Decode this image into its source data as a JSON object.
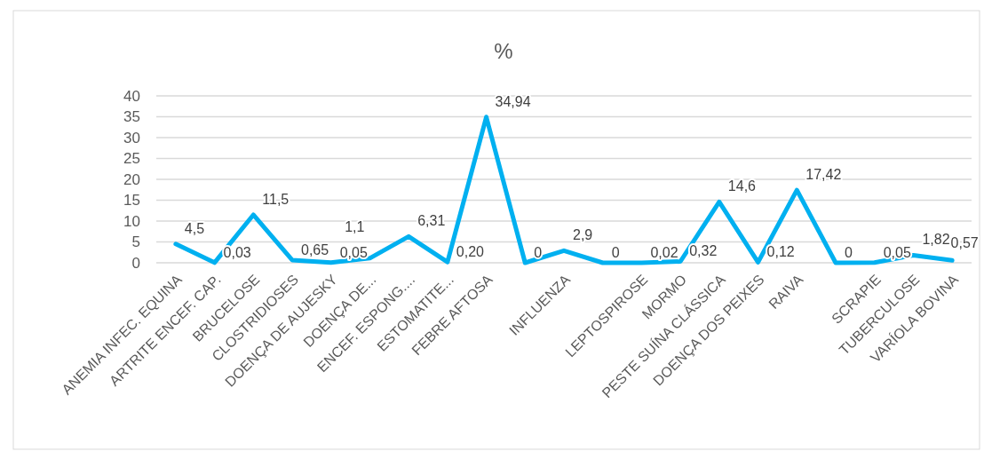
{
  "chart_data": {
    "type": "line",
    "title": "%",
    "categories": [
      "ANEMIA INFEC. EQUINA",
      "ARTRITE ENCEF. CAP.",
      "BRUCELOSE",
      "CLOSTRIDIOSES",
      "DOENÇA DE AUJESKY",
      "DOENÇA DE...",
      "ENCEF. ESPONG....",
      "ESTOMATITE...",
      "FEBRE AFTOSA",
      null,
      "INFLUENZA",
      null,
      "LEPTOSPIROSE",
      "MORMO",
      "PESTE SUÍNA CLÁSSICA",
      "DOENÇA DOS PEIXES",
      "RAIVA",
      null,
      "SCRAPIE",
      "TUBERCULOSE",
      "VARÍOLA BOVINA"
    ],
    "series": [
      {
        "color": "#00b0f0",
        "values": [
          4.5,
          0.03,
          11.5,
          0.65,
          0.05,
          1.1,
          6.31,
          0.2,
          34.94,
          0,
          2.9,
          0,
          0.02,
          0.32,
          14.6,
          0.12,
          17.42,
          0,
          0.05,
          1.82,
          0.57
        ],
        "value_labels": [
          "4,5",
          "0,03",
          "11,5",
          "0,65",
          "0,05",
          "1,1",
          "6,31",
          "0,20",
          "34,94",
          "0",
          "2,9",
          "0",
          "0,02",
          "0,32",
          "14,6",
          "0,12",
          "17,42",
          "0",
          "0,05",
          "1,82",
          "0,57"
        ]
      }
    ],
    "ylim": [
      0,
      40
    ],
    "yticks": [
      0,
      5,
      10,
      15,
      20,
      25,
      30,
      35,
      40
    ],
    "grid": "y",
    "marker": "none",
    "line_style": "solid"
  }
}
